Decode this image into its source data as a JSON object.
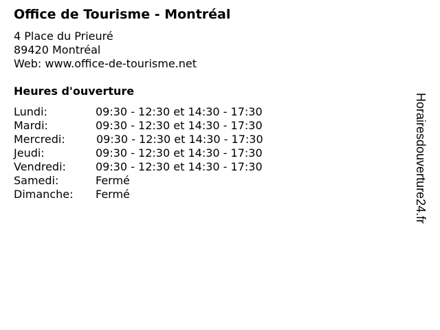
{
  "title": "Office de Tourisme - Montréal",
  "address": {
    "street": "4 Place du Prieuré",
    "city": "89420 Montréal",
    "web": "Web: www.office-de-tourisme.net"
  },
  "hours_heading": "Heures d'ouverture",
  "hours": [
    {
      "day": "Lundi:",
      "time": "09:30 - 12:30 et 14:30 - 17:30"
    },
    {
      "day": "Mardi:",
      "time": "09:30 - 12:30 et 14:30 - 17:30"
    },
    {
      "day": "Mercredi:",
      "time": "09:30 - 12:30 et 14:30 - 17:30"
    },
    {
      "day": "Jeudi:",
      "time": "09:30 - 12:30 et 14:30 - 17:30"
    },
    {
      "day": "Vendredi:",
      "time": "09:30 - 12:30 et 14:30 - 17:30"
    },
    {
      "day": "Samedi:",
      "time": "Fermé"
    },
    {
      "day": "Dimanche:",
      "time": "Fermé"
    }
  ],
  "watermark": "Horairesdouverture24.fr"
}
